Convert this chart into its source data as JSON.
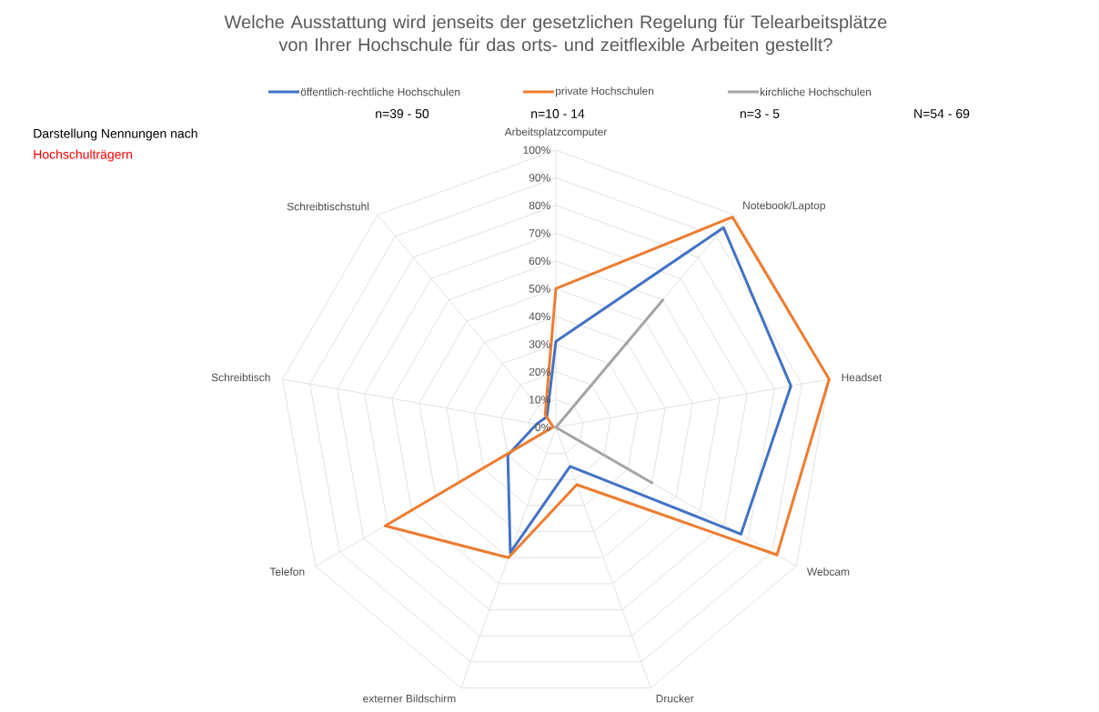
{
  "chart_data": {
    "type": "radar",
    "title": "Welche Ausstattung wird jenseits der gesetzlichen Regelung für Telearbeitsplätze von Ihrer Hochschule für das orts- und zeitflexible Arbeiten gestellt?",
    "categories": [
      "Arbeitsplatzcomputer",
      "Notebook/Laptop",
      "Headset",
      "Webcam",
      "Drucker",
      "externer Bildschirm",
      "Telefon",
      "Schreibtisch",
      "Schreibtischstuhl"
    ],
    "series": [
      {
        "name": "öffentlich-rechtliche Hochschulen",
        "color": "#4472c4",
        "values": [
          31,
          94,
          86,
          77,
          15,
          48,
          20,
          7,
          5
        ]
      },
      {
        "name": "private Hochschulen",
        "color": "#ed7d31",
        "values": [
          50,
          99,
          100,
          92,
          22,
          50,
          71,
          1,
          6
        ]
      },
      {
        "name": "kirchliche Hochschulen",
        "color": "#a5a5a5",
        "values": [
          0,
          60,
          0,
          40,
          0,
          0,
          0,
          0,
          0
        ]
      }
    ],
    "ylim": [
      0,
      100
    ],
    "yticks": [
      {
        "value": 0,
        "label": "0%"
      },
      {
        "value": 10,
        "label": "10%"
      },
      {
        "value": 20,
        "label": "20%"
      },
      {
        "value": 30,
        "label": "30%"
      },
      {
        "value": 40,
        "label": "40%"
      },
      {
        "value": 50,
        "label": "50%"
      },
      {
        "value": 60,
        "label": "60%"
      },
      {
        "value": 70,
        "label": "70%"
      },
      {
        "value": 80,
        "label": "80%"
      },
      {
        "value": 90,
        "label": "90%"
      },
      {
        "value": 100,
        "label": "100%"
      }
    ],
    "grid": true,
    "legend": "top",
    "annotations": [
      "n=39 - 50",
      "n=10 - 14",
      "n=3 - 5",
      "N=54 - 69",
      "Darstellung Nennungen nach",
      "Hochschulträgern"
    ]
  }
}
